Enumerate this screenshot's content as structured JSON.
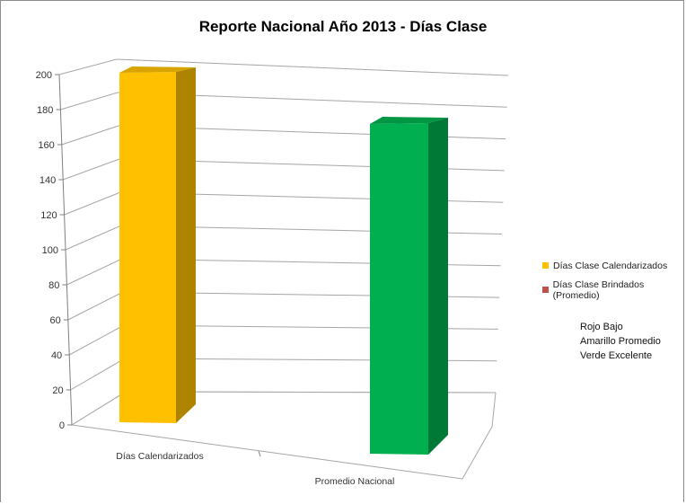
{
  "chart_data": {
    "type": "bar",
    "title": "Reporte Nacional  Año 2013 - Días Clase",
    "categories": [
      "Días Calendarizados",
      "Promedio Nacional"
    ],
    "values": [
      200,
      191
    ],
    "bar_colors": [
      "#ffc000",
      "#00b050"
    ],
    "ylim": [
      0,
      200
    ],
    "yticks": [
      0,
      20,
      40,
      60,
      80,
      100,
      120,
      140,
      160,
      180,
      200
    ],
    "legend_position": "right",
    "legend": [
      {
        "label": "Días Clase Calendarizados",
        "color": "#ffc000"
      },
      {
        "label": "Días Clase Brindados (Promedio)",
        "color": "#c0504d"
      }
    ],
    "grid": true
  },
  "notes": [
    "Rojo Bajo",
    "Amarillo Promedio",
    "Verde Excelente"
  ]
}
